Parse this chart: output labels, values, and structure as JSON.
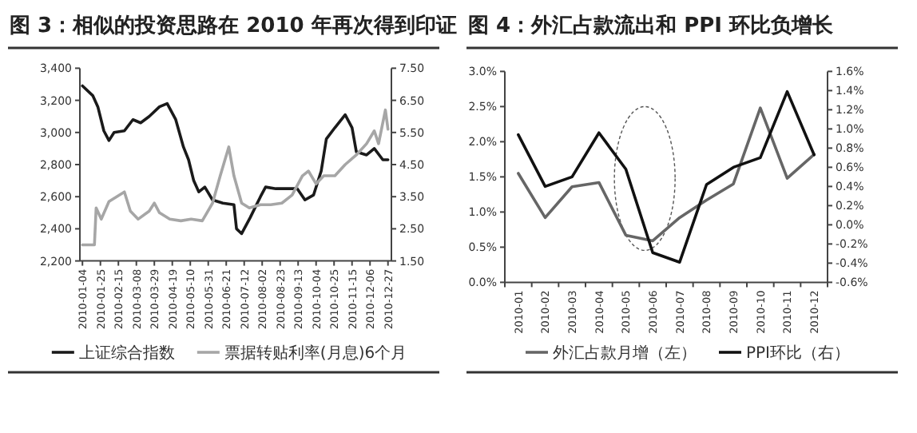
{
  "chart_data": [
    {
      "type": "line",
      "title": "图 3：相似的投资思路在 2010 年再次得到印证",
      "legend": "bottom",
      "xlim": [
        "2010-01-01",
        "2010-12-31"
      ],
      "xticks": [
        "2010-01-04",
        "2010-01-25",
        "2010-02-15",
        "2010-03-08",
        "2010-03-29",
        "2010-04-19",
        "2010-05-10",
        "2010-05-31",
        "2010-06-21",
        "2010-07-12",
        "2010-08-02",
        "2010-08-23",
        "2010-09-13",
        "2010-10-04",
        "2010-10-25",
        "2010-11-15",
        "2010-12-06",
        "2010-12-27"
      ],
      "ylim": [
        2200,
        3400
      ],
      "yticks": [
        {
          "value": 2200,
          "label": "2,200"
        },
        {
          "value": 2400,
          "label": "2,400"
        },
        {
          "value": 2600,
          "label": "2,600"
        },
        {
          "value": 2800,
          "label": "2,800"
        },
        {
          "value": 3000,
          "label": "3,000"
        },
        {
          "value": 3200,
          "label": "3,200"
        },
        {
          "value": 3400,
          "label": "3,400"
        }
      ],
      "y2lim": [
        1.5,
        7.5
      ],
      "y2ticks": [
        {
          "value": 1.5,
          "label": "1.50"
        },
        {
          "value": 2.5,
          "label": "2.50"
        },
        {
          "value": 3.5,
          "label": "3.50"
        },
        {
          "value": 4.5,
          "label": "4.50"
        },
        {
          "value": 5.5,
          "label": "5.50"
        },
        {
          "value": 6.5,
          "label": "6.50"
        },
        {
          "value": 7.5,
          "label": "7.50"
        }
      ],
      "series": [
        {
          "name": "上证综合指数",
          "color": "#1a1a1a",
          "x": [
            "2010-01-04",
            "2010-01-16",
            "2010-01-22",
            "2010-01-29",
            "2010-02-04",
            "2010-02-10",
            "2010-02-22",
            "2010-03-04",
            "2010-03-13",
            "2010-03-23",
            "2010-04-04",
            "2010-04-13",
            "2010-04-23",
            "2010-05-02",
            "2010-05-08",
            "2010-05-14",
            "2010-05-20",
            "2010-05-27",
            "2010-06-05",
            "2010-06-17",
            "2010-06-30",
            "2010-07-03",
            "2010-07-09",
            "2010-07-19",
            "2010-07-31",
            "2010-08-06",
            "2010-08-18",
            "2010-08-31",
            "2010-09-12",
            "2010-09-21",
            "2010-10-01",
            "2010-10-10",
            "2010-10-16",
            "2010-10-26",
            "2010-11-07",
            "2010-11-15",
            "2010-11-20",
            "2010-12-02",
            "2010-12-11",
            "2010-12-21",
            "2010-12-27"
          ],
          "values": [
            3290,
            3230,
            3160,
            3010,
            2950,
            3000,
            3010,
            3080,
            3060,
            3100,
            3160,
            3180,
            3080,
            2910,
            2830,
            2700,
            2630,
            2660,
            2580,
            2560,
            2550,
            2400,
            2370,
            2470,
            2600,
            2660,
            2650,
            2650,
            2650,
            2580,
            2610,
            2760,
            2960,
            3030,
            3110,
            3030,
            2880,
            2860,
            2900,
            2830,
            2830
          ]
        },
        {
          "name": "票据转贴利率(月息)6个月",
          "color": "#a6a6a6",
          "axis": "y2",
          "x": [
            "2010-01-04",
            "2010-01-18",
            "2010-01-20",
            "2010-01-26",
            "2010-02-04",
            "2010-02-22",
            "2010-03-01",
            "2010-03-10",
            "2010-03-23",
            "2010-03-29",
            "2010-04-04",
            "2010-04-16",
            "2010-04-29",
            "2010-05-11",
            "2010-05-24",
            "2010-06-05",
            "2010-06-14",
            "2010-06-24",
            "2010-06-30",
            "2010-07-09",
            "2010-07-18",
            "2010-07-31",
            "2010-08-12",
            "2010-08-25",
            "2010-09-06",
            "2010-09-18",
            "2010-09-25",
            "2010-10-04",
            "2010-10-13",
            "2010-10-26",
            "2010-11-07",
            "2010-11-20",
            "2010-12-02",
            "2010-12-11",
            "2010-12-16",
            "2010-12-24",
            "2010-12-27"
          ],
          "values": [
            2.0,
            2.0,
            3.15,
            2.8,
            3.35,
            3.65,
            3.05,
            2.8,
            3.05,
            3.3,
            3.0,
            2.8,
            2.75,
            2.8,
            2.75,
            3.3,
            4.15,
            5.05,
            4.15,
            3.3,
            3.15,
            3.25,
            3.25,
            3.3,
            3.55,
            4.15,
            4.3,
            3.9,
            4.15,
            4.15,
            4.5,
            4.8,
            5.15,
            5.55,
            5.15,
            6.2,
            5.6
          ]
        }
      ]
    },
    {
      "type": "line",
      "title": "图 4：外汇占款流出和 PPI 环比负增长",
      "legend": "bottom",
      "categories": [
        "2010-01",
        "2010-02",
        "2010-03",
        "2010-04",
        "2010-05",
        "2010-06",
        "2010-07",
        "2010-08",
        "2010-09",
        "2010-10",
        "2010-11",
        "2010-12"
      ],
      "ylim": [
        0,
        3
      ],
      "yticks": [
        {
          "value": 0,
          "label": "0.0%"
        },
        {
          "value": 0.5,
          "label": "0.5%"
        },
        {
          "value": 1,
          "label": "1.0%"
        },
        {
          "value": 1.5,
          "label": "1.5%"
        },
        {
          "value": 2,
          "label": "2.0%"
        },
        {
          "value": 2.5,
          "label": "2.5%"
        },
        {
          "value": 3,
          "label": "3.0%"
        }
      ],
      "y2lim": [
        -0.6,
        1.6
      ],
      "y2ticks": [
        {
          "value": -0.6,
          "label": "-0.6%"
        },
        {
          "value": -0.4,
          "label": "-0.4%"
        },
        {
          "value": -0.2,
          "label": "-0.2%"
        },
        {
          "value": 0,
          "label": "0.0%"
        },
        {
          "value": 0.2,
          "label": "0.2%"
        },
        {
          "value": 0.4,
          "label": "0.4%"
        },
        {
          "value": 0.6,
          "label": "0.6%"
        },
        {
          "value": 0.8,
          "label": "0.8%"
        },
        {
          "value": 1,
          "label": "1.0%"
        },
        {
          "value": 1.2,
          "label": "1.2%"
        },
        {
          "value": 1.4,
          "label": "1.4%"
        },
        {
          "value": 1.6,
          "label": "1.6%"
        }
      ],
      "series": [
        {
          "name": "外汇占款月增（左）",
          "color": "#666666",
          "values": [
            1.55,
            0.92,
            1.36,
            1.42,
            0.67,
            0.59,
            0.92,
            1.17,
            1.4,
            2.48,
            1.48,
            1.82
          ]
        },
        {
          "name": "PPI环比（右）",
          "color": "#111111",
          "axis": "y2",
          "values": [
            0.94,
            0.4,
            0.5,
            0.96,
            0.58,
            -0.29,
            -0.39,
            0.42,
            0.6,
            0.7,
            1.39,
            0.73
          ]
        }
      ]
    }
  ]
}
